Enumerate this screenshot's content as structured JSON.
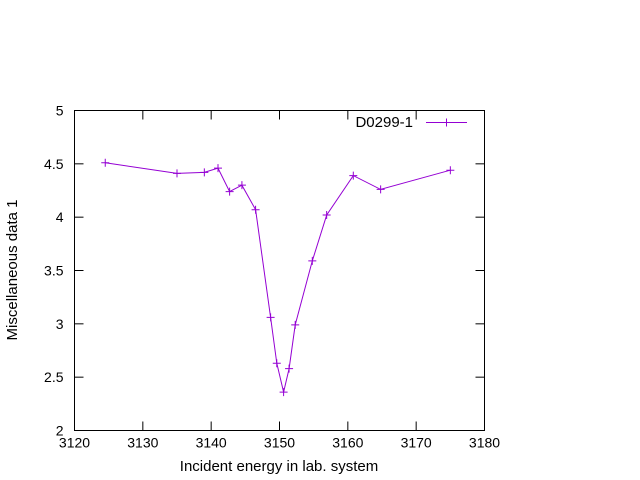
{
  "chart_data": {
    "type": "line",
    "title": "",
    "xlabel": "Incident energy in lab. system",
    "ylabel": "Miscellaneous data 1",
    "xlim": [
      3120,
      3180
    ],
    "ylim": [
      2,
      5
    ],
    "xticks": [
      3120,
      3130,
      3140,
      3150,
      3160,
      3170,
      3180
    ],
    "yticks": [
      2,
      2.5,
      3,
      3.5,
      4,
      4.5,
      5
    ],
    "ytick_labels": [
      "2",
      "2.5",
      "3",
      "3.5",
      "4",
      "4.5",
      "5"
    ],
    "grid": false,
    "legend_position": "top-right",
    "series": [
      {
        "name": "D0299-1",
        "color": "#9400d3",
        "marker": "plus",
        "x": [
          3124.5,
          3135,
          3139,
          3141,
          3142.7,
          3144.5,
          3146.5,
          3148.7,
          3149.6,
          3150.6,
          3151.4,
          3152.3,
          3154.8,
          3156.9,
          3160.8,
          3164.8,
          3175
        ],
        "y": [
          4.51,
          4.41,
          4.42,
          4.46,
          4.24,
          4.3,
          4.07,
          3.06,
          2.63,
          2.36,
          2.58,
          2.99,
          3.59,
          4.02,
          4.39,
          4.26,
          4.44
        ]
      }
    ]
  }
}
